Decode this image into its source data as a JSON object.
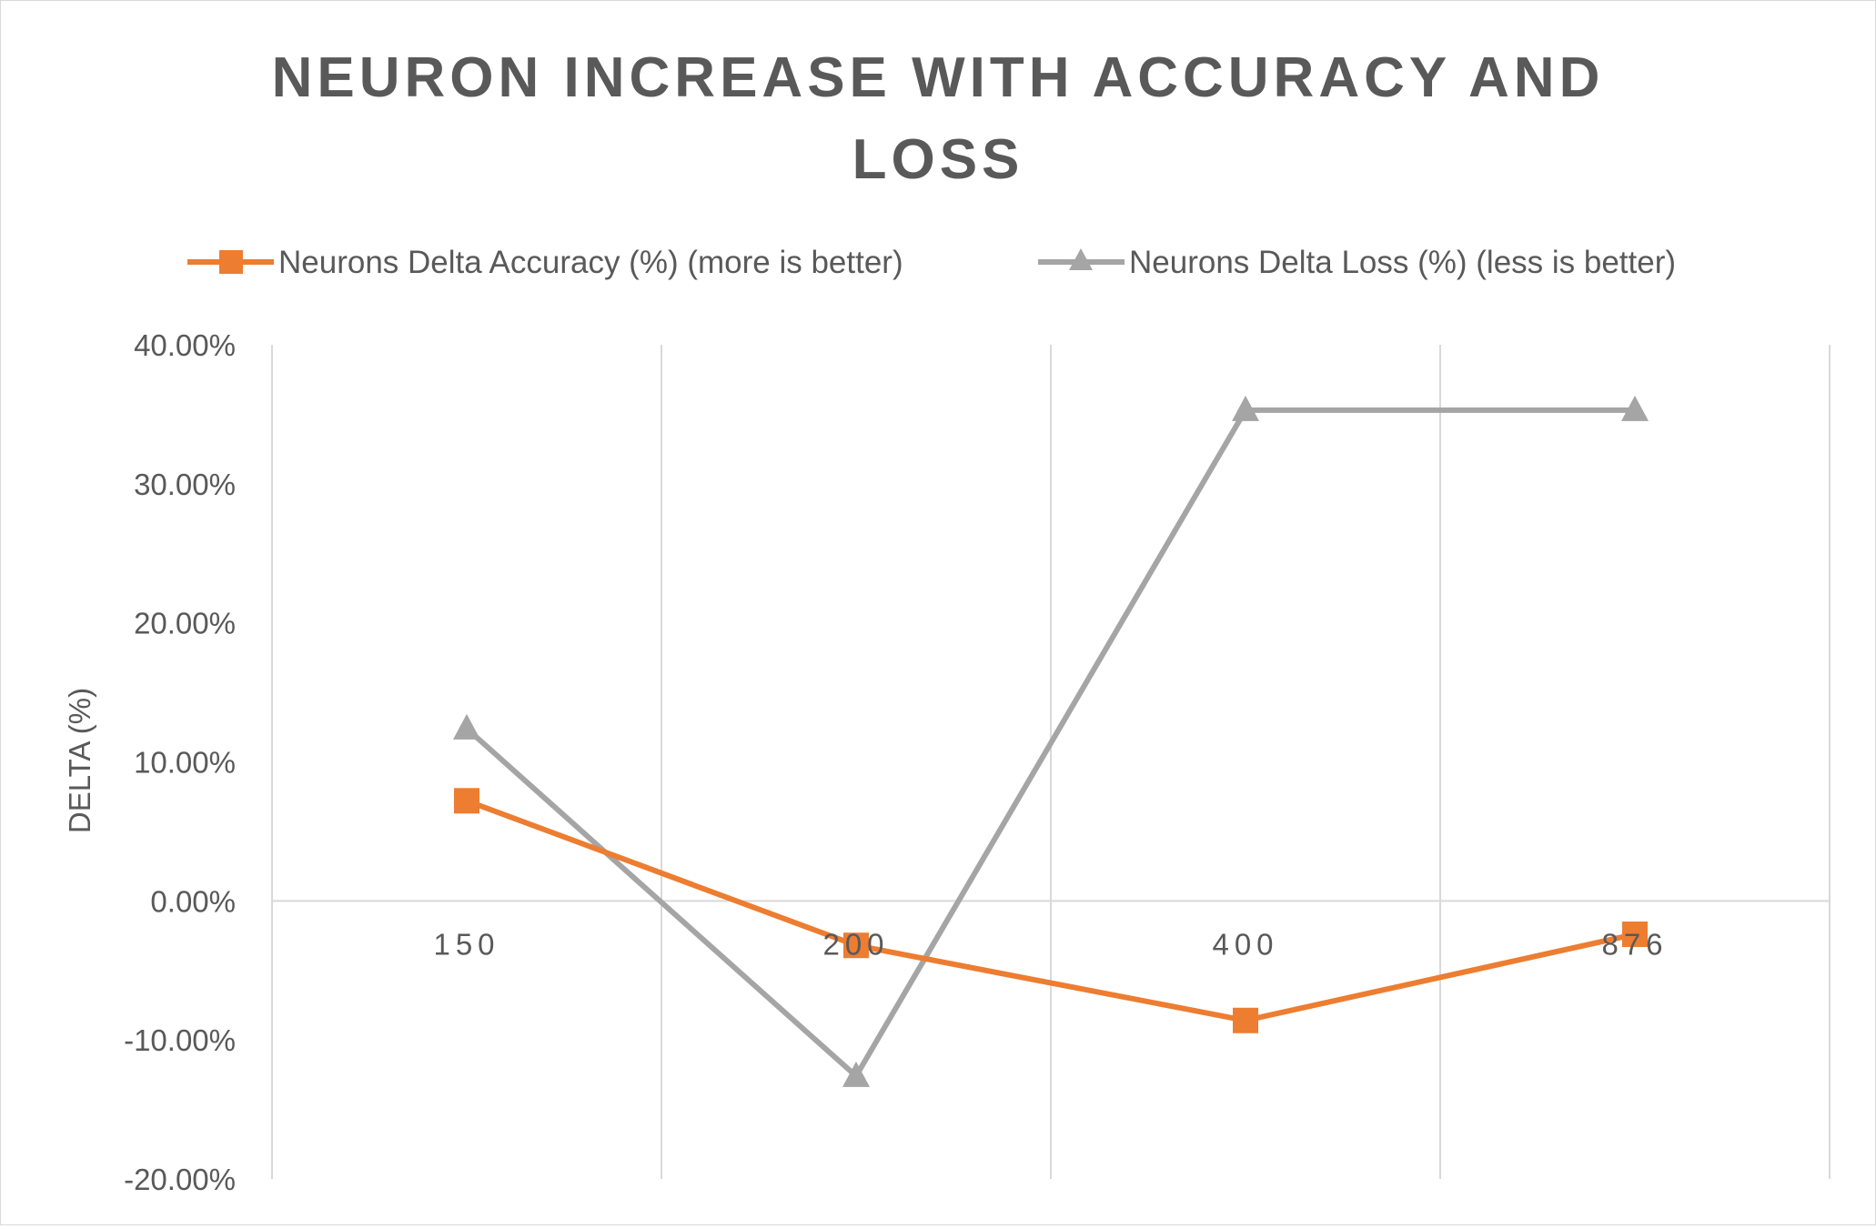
{
  "chart_data": {
    "type": "line",
    "title": "NEURON INCREASE WITH ACCURACY AND LOSS",
    "title_lines": [
      "NEURON INCREASE WITH ACCURACY AND",
      "LOSS"
    ],
    "xlabel": "",
    "ylabel": "DELTA (%)",
    "categories": [
      "150",
      "200",
      "400",
      "876"
    ],
    "ylim": [
      -20,
      40
    ],
    "yticks": [
      40,
      30,
      20,
      10,
      0,
      -10,
      -20
    ],
    "ytick_labels": [
      "40.00%",
      "30.00%",
      "20.00%",
      "10.00%",
      "0.00%",
      "-10.00%",
      "-20.00%"
    ],
    "grid": "vertical",
    "legend_position": "top",
    "series": [
      {
        "name": "Neurons Delta Accuracy (%) (more is better)",
        "values": [
          7.2,
          -3.2,
          -8.6,
          -2.4
        ],
        "color": "#ED7D31",
        "marker": "square"
      },
      {
        "name": "Neurons Delta Loss (%) (less is better)",
        "values": [
          12.4,
          -12.6,
          35.3,
          35.3
        ],
        "color": "#A5A5A5",
        "marker": "triangle"
      }
    ]
  }
}
